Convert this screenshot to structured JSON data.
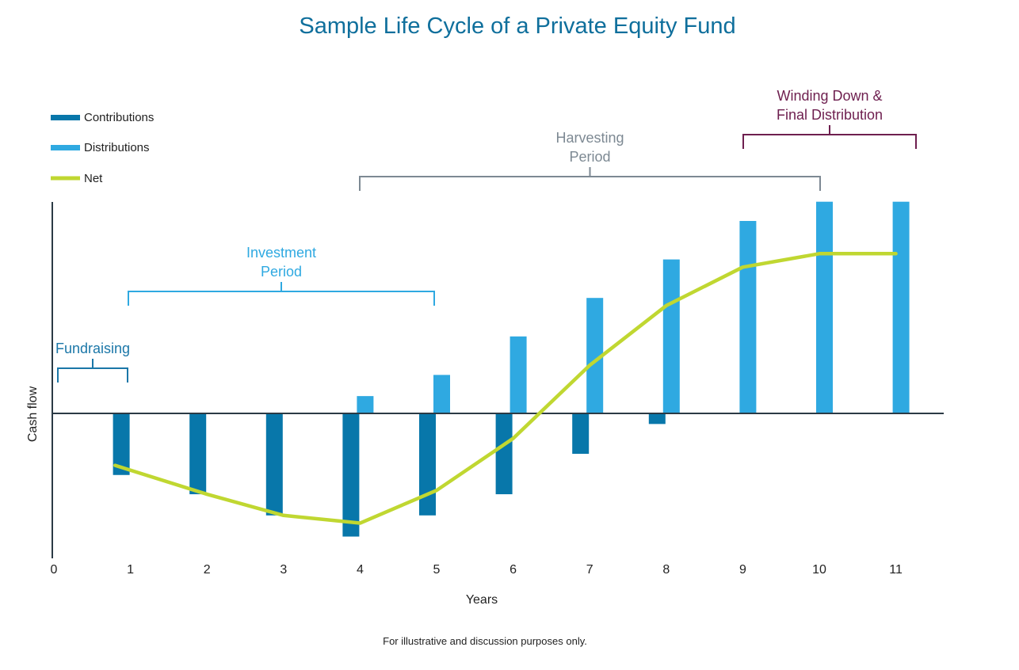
{
  "chart_data": {
    "type": "bar",
    "title": "Sample Life Cycle of a Private Equity Fund",
    "xlabel": "Years",
    "ylabel": "Cash flow",
    "x_ticks": [
      "0",
      "1",
      "2",
      "3",
      "4",
      "5",
      "6",
      "7",
      "8",
      "9",
      "10",
      "11"
    ],
    "ylim": [
      -7.5,
      11
    ],
    "legend": [
      {
        "key": "contributions",
        "label": "Contributions",
        "color": "#0877aa"
      },
      {
        "key": "distributions",
        "label": "Distributions",
        "color": "#2fa9e1"
      },
      {
        "key": "net",
        "label": "Net",
        "color": "#c0d731"
      }
    ],
    "series": [
      {
        "name": "Contributions",
        "x": [
          1,
          2,
          3,
          4,
          5,
          6,
          7,
          8
        ],
        "values": [
          -3.2,
          -4.2,
          -5.3,
          -6.4,
          -5.3,
          -4.2,
          -2.1,
          -0.55
        ]
      },
      {
        "name": "Distributions",
        "x": [
          4,
          5,
          6,
          7,
          8,
          9,
          10,
          11
        ],
        "values": [
          0.9,
          2.0,
          4.0,
          6.0,
          8.0,
          10.0,
          11.0,
          11.0
        ]
      },
      {
        "name": "Net",
        "type": "line",
        "x": [
          0.8,
          2.0,
          3.0,
          4.0,
          5.0,
          6.0,
          7.0,
          8.0,
          9.0,
          10.0,
          11.0
        ],
        "values": [
          -2.7,
          -4.2,
          -5.3,
          -5.7,
          -4.0,
          -1.3,
          2.5,
          5.6,
          7.6,
          8.3,
          8.3
        ]
      }
    ],
    "phases": [
      {
        "label_lines": [
          "Fundraising"
        ],
        "start": 0,
        "end": 1,
        "color": "#1b77a8"
      },
      {
        "label_lines": [
          "Investment",
          "Period"
        ],
        "start": 1,
        "end": 5,
        "color": "#2fa9e1"
      },
      {
        "label_lines": [
          "Harvesting",
          "Period"
        ],
        "start": 4,
        "end": 10,
        "color": "#7d8993"
      },
      {
        "label_lines": [
          "Winding Down &",
          "Final Distribution"
        ],
        "start": 9,
        "end": 11.3,
        "color": "#6e1f4f"
      }
    ],
    "footnote": "For illustrative and discussion purposes only."
  }
}
